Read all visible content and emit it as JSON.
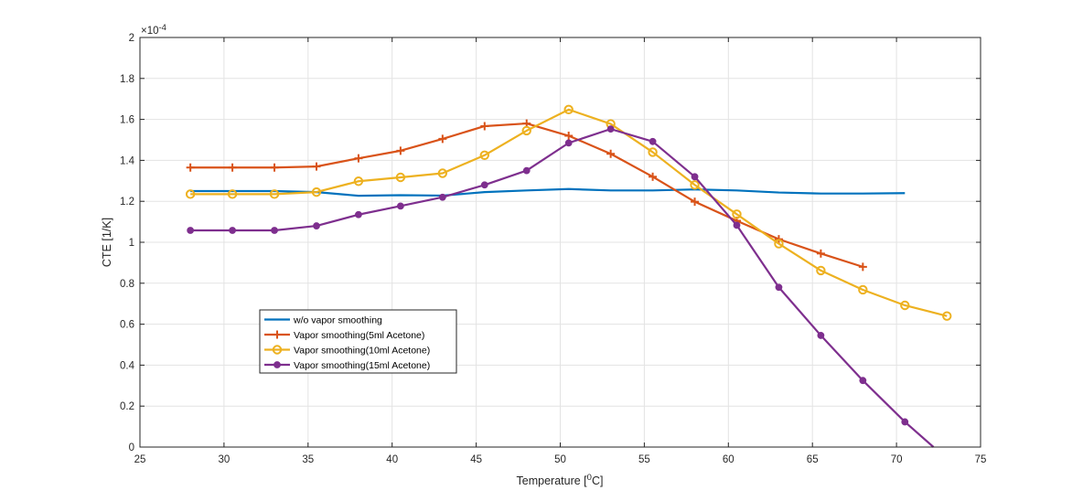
{
  "chart_data": {
    "type": "line",
    "title": "",
    "xlabel": "Temperature [",
    "xlabel_sup": "0",
    "xlabel_unit": "C]",
    "ylabel": "CTE [1/K]",
    "y_exponent_prefix": "×10",
    "y_exponent": "-4",
    "xlim": [
      25,
      75
    ],
    "ylim": [
      0,
      2
    ],
    "xticks": [
      "25",
      "30",
      "35",
      "40",
      "45",
      "50",
      "55",
      "60",
      "65",
      "70",
      "75"
    ],
    "yticks": [
      "0",
      "0.2",
      "0.4",
      "0.6",
      "0.8",
      "1",
      "1.2",
      "1.4",
      "1.6",
      "1.8",
      "2"
    ],
    "grid": true,
    "legend_position": "lower-left",
    "series": [
      {
        "name": "w/o vapor smoothing",
        "color": "#0072BD",
        "marker": "none",
        "x": [
          28,
          30.5,
          33,
          35.5,
          38,
          40.5,
          43,
          45.5,
          48,
          50.5,
          53,
          55.5,
          58,
          60.5,
          63,
          65.5,
          68,
          70.5
        ],
        "y": [
          1.25,
          1.25,
          1.25,
          1.245,
          1.227,
          1.23,
          1.228,
          1.245,
          1.253,
          1.26,
          1.253,
          1.253,
          1.258,
          1.253,
          1.243,
          1.238,
          1.238,
          1.24
        ]
      },
      {
        "name": "Vapor smoothing(5ml Acetone)",
        "color": "#D95319",
        "marker": "plus",
        "x": [
          28,
          30.5,
          33,
          35.5,
          38,
          40.5,
          43,
          45.5,
          48,
          50.5,
          53,
          55.5,
          58,
          60.5,
          63,
          65.5,
          68
        ],
        "y": [
          1.365,
          1.365,
          1.365,
          1.37,
          1.41,
          1.447,
          1.505,
          1.567,
          1.58,
          1.52,
          1.432,
          1.32,
          1.198,
          1.105,
          1.015,
          0.945,
          0.88
        ]
      },
      {
        "name": "Vapor smoothing(10ml Acetone)",
        "color": "#EDB120",
        "marker": "circle",
        "x": [
          28,
          30.5,
          33,
          35.5,
          38,
          40.5,
          43,
          45.5,
          48,
          50.5,
          53,
          55.5,
          58,
          60.5,
          63,
          65.5,
          68,
          70.5,
          73
        ],
        "y": [
          1.235,
          1.235,
          1.235,
          1.245,
          1.298,
          1.317,
          1.337,
          1.425,
          1.545,
          1.648,
          1.578,
          1.44,
          1.28,
          1.137,
          0.993,
          0.862,
          0.768,
          0.692,
          0.64
        ]
      },
      {
        "name": "Vapor smoothing(15ml Acetone)",
        "color": "#7E2F8E",
        "marker": "dot",
        "x": [
          28,
          30.5,
          33,
          35.5,
          38,
          40.5,
          43,
          45.5,
          48,
          50.5,
          53,
          55.5,
          58,
          60.5,
          63,
          65.5,
          68,
          70.5,
          72.2
        ],
        "y": [
          1.058,
          1.058,
          1.058,
          1.08,
          1.135,
          1.177,
          1.22,
          1.28,
          1.35,
          1.485,
          1.553,
          1.492,
          1.32,
          1.083,
          0.78,
          0.545,
          0.325,
          0.123,
          0.0
        ]
      }
    ]
  }
}
